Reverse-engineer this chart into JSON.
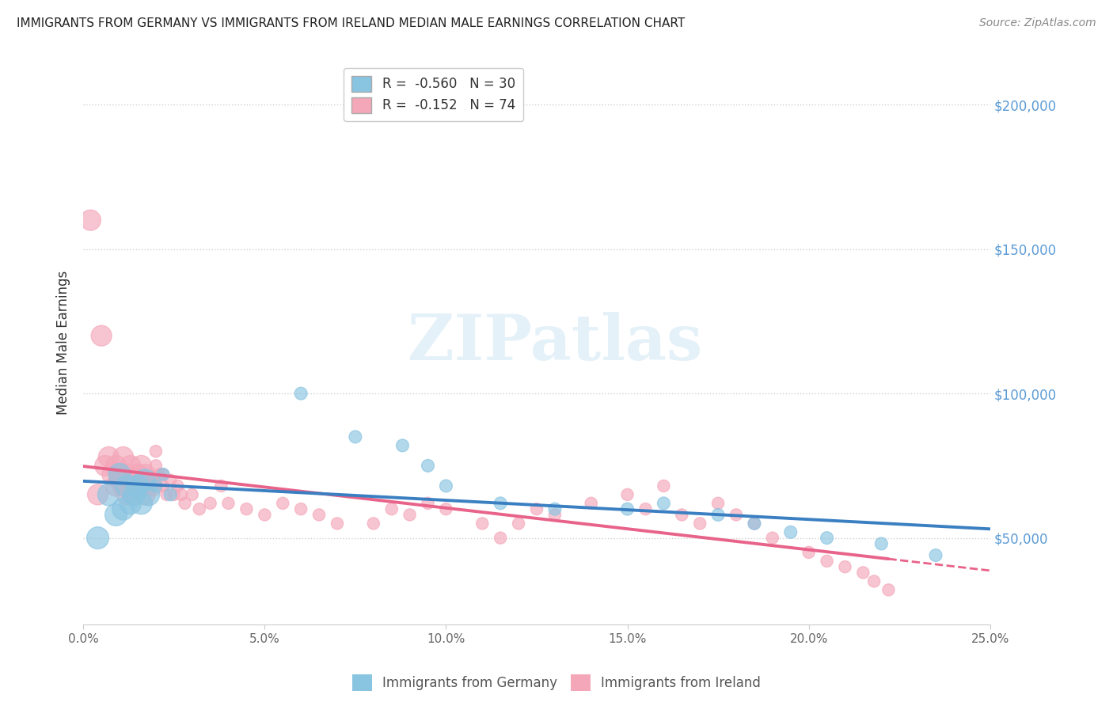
{
  "title": "IMMIGRANTS FROM GERMANY VS IMMIGRANTS FROM IRELAND MEDIAN MALE EARNINGS CORRELATION CHART",
  "source": "Source: ZipAtlas.com",
  "ylabel": "Median Male Earnings",
  "xlim": [
    0.0,
    0.25
  ],
  "ylim": [
    20000,
    215000
  ],
  "yticks": [
    50000,
    100000,
    150000,
    200000
  ],
  "xticks": [
    0.0,
    0.05,
    0.1,
    0.15,
    0.2,
    0.25
  ],
  "xtick_labels": [
    "0.0%",
    "5.0%",
    "10.0%",
    "15.0%",
    "20.0%",
    "25.0%"
  ],
  "germany_R": -0.56,
  "germany_N": 30,
  "ireland_R": -0.152,
  "ireland_N": 74,
  "germany_color": "#89c4e1",
  "ireland_color": "#f4a7b9",
  "germany_line_color": "#3a7fc1",
  "ireland_line_color": "#e8638a",
  "watermark_text": "ZIPatlas",
  "legend_label_germany": "Immigrants from Germany",
  "legend_label_ireland": "Immigrants from Ireland",
  "germany_x": [
    0.004,
    0.007,
    0.009,
    0.01,
    0.011,
    0.012,
    0.013,
    0.014,
    0.015,
    0.016,
    0.017,
    0.018,
    0.02,
    0.022,
    0.024,
    0.06,
    0.075,
    0.088,
    0.095,
    0.1,
    0.115,
    0.13,
    0.15,
    0.16,
    0.175,
    0.185,
    0.195,
    0.205,
    0.22,
    0.235
  ],
  "germany_y": [
    50000,
    65000,
    58000,
    72000,
    60000,
    68000,
    62000,
    65000,
    68000,
    62000,
    70000,
    65000,
    68000,
    72000,
    65000,
    100000,
    85000,
    82000,
    75000,
    68000,
    62000,
    60000,
    60000,
    62000,
    58000,
    55000,
    52000,
    50000,
    48000,
    44000
  ],
  "ireland_x": [
    0.002,
    0.004,
    0.005,
    0.006,
    0.007,
    0.008,
    0.009,
    0.009,
    0.01,
    0.01,
    0.011,
    0.011,
    0.012,
    0.012,
    0.013,
    0.013,
    0.014,
    0.014,
    0.015,
    0.015,
    0.016,
    0.016,
    0.017,
    0.017,
    0.018,
    0.019,
    0.02,
    0.02,
    0.021,
    0.022,
    0.022,
    0.023,
    0.024,
    0.025,
    0.026,
    0.027,
    0.028,
    0.03,
    0.032,
    0.035,
    0.038,
    0.04,
    0.045,
    0.05,
    0.055,
    0.06,
    0.065,
    0.07,
    0.08,
    0.085,
    0.09,
    0.095,
    0.1,
    0.11,
    0.115,
    0.12,
    0.125,
    0.13,
    0.14,
    0.15,
    0.155,
    0.16,
    0.165,
    0.17,
    0.175,
    0.18,
    0.185,
    0.19,
    0.2,
    0.205,
    0.21,
    0.215,
    0.218,
    0.222
  ],
  "ireland_y": [
    160000,
    65000,
    120000,
    75000,
    78000,
    72000,
    68000,
    75000,
    70000,
    72000,
    78000,
    68000,
    72000,
    65000,
    75000,
    68000,
    70000,
    65000,
    72000,
    68000,
    75000,
    68000,
    72000,
    65000,
    70000,
    68000,
    75000,
    80000,
    72000,
    68000,
    72000,
    65000,
    70000,
    65000,
    68000,
    65000,
    62000,
    65000,
    60000,
    62000,
    68000,
    62000,
    60000,
    58000,
    62000,
    60000,
    58000,
    55000,
    55000,
    60000,
    58000,
    62000,
    60000,
    55000,
    50000,
    55000,
    60000,
    58000,
    62000,
    65000,
    60000,
    68000,
    58000,
    55000,
    62000,
    58000,
    55000,
    50000,
    45000,
    42000,
    40000,
    38000,
    35000,
    32000
  ]
}
